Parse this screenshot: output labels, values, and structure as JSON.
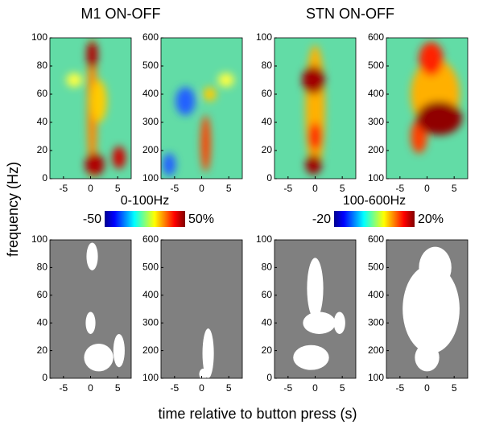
{
  "figure": {
    "titles": [
      "M1 ON-OFF",
      "STN ON-OFF"
    ],
    "ylabel": "frequency (Hz)",
    "xlabel": "time relative to button press (s)",
    "colorbars": [
      {
        "label": "0-100Hz",
        "lim": [
          -50,
          50
        ],
        "ticks": [
          -50,
          {
            "value": 50,
            "label": "50%"
          }
        ]
      },
      {
        "label": "100-600Hz",
        "lim": [
          -20,
          20
        ],
        "ticks": [
          -20,
          {
            "value": 20,
            "label": "20%"
          }
        ]
      }
    ]
  },
  "chart_data": [
    {
      "type": "heatmap",
      "xlim": [
        -7.5,
        7.5
      ],
      "xticks": [
        -5,
        0,
        5
      ],
      "ylim": [
        0,
        100
      ],
      "yticks": [
        0,
        20,
        40,
        60,
        80,
        100
      ]
    },
    {
      "type": "heatmap",
      "xlim": [
        -7.5,
        7.5
      ],
      "xticks": [
        -5,
        0,
        5
      ],
      "ylim": [
        100,
        600
      ],
      "yticks": [
        100,
        200,
        300,
        400,
        500,
        600
      ]
    },
    {
      "type": "heatmap",
      "xlim": [
        -7.5,
        7.5
      ],
      "xticks": [
        -5,
        0,
        5
      ],
      "ylim": [
        0,
        100
      ],
      "yticks": [
        0,
        20,
        40,
        60,
        80,
        100
      ]
    },
    {
      "type": "heatmap",
      "xlim": [
        -7.5,
        7.5
      ],
      "xticks": [
        -5,
        0,
        5
      ],
      "ylim": [
        100,
        600
      ],
      "yticks": [
        100,
        200,
        300,
        400,
        500,
        600
      ]
    },
    {
      "type": "mask",
      "xlim": [
        -7.5,
        7.5
      ],
      "xticks": [
        -5,
        0,
        5
      ],
      "ylim": [
        0,
        100
      ],
      "yticks": [
        0,
        20,
        40,
        60,
        80,
        100
      ]
    },
    {
      "type": "mask",
      "xlim": [
        -7.5,
        7.5
      ],
      "xticks": [
        -5,
        0,
        5
      ],
      "ylim": [
        100,
        600
      ],
      "yticks": [
        100,
        200,
        300,
        400,
        500,
        600
      ]
    },
    {
      "type": "mask",
      "xlim": [
        -7.5,
        7.5
      ],
      "xticks": [
        -5,
        0,
        5
      ],
      "ylim": [
        0,
        100
      ],
      "yticks": [
        0,
        20,
        40,
        60,
        80,
        100
      ]
    },
    {
      "type": "mask",
      "xlim": [
        -7.5,
        7.5
      ],
      "xticks": [
        -5,
        0,
        5
      ],
      "ylim": [
        100,
        600
      ],
      "yticks": [
        100,
        200,
        300,
        400,
        500,
        600
      ]
    }
  ]
}
